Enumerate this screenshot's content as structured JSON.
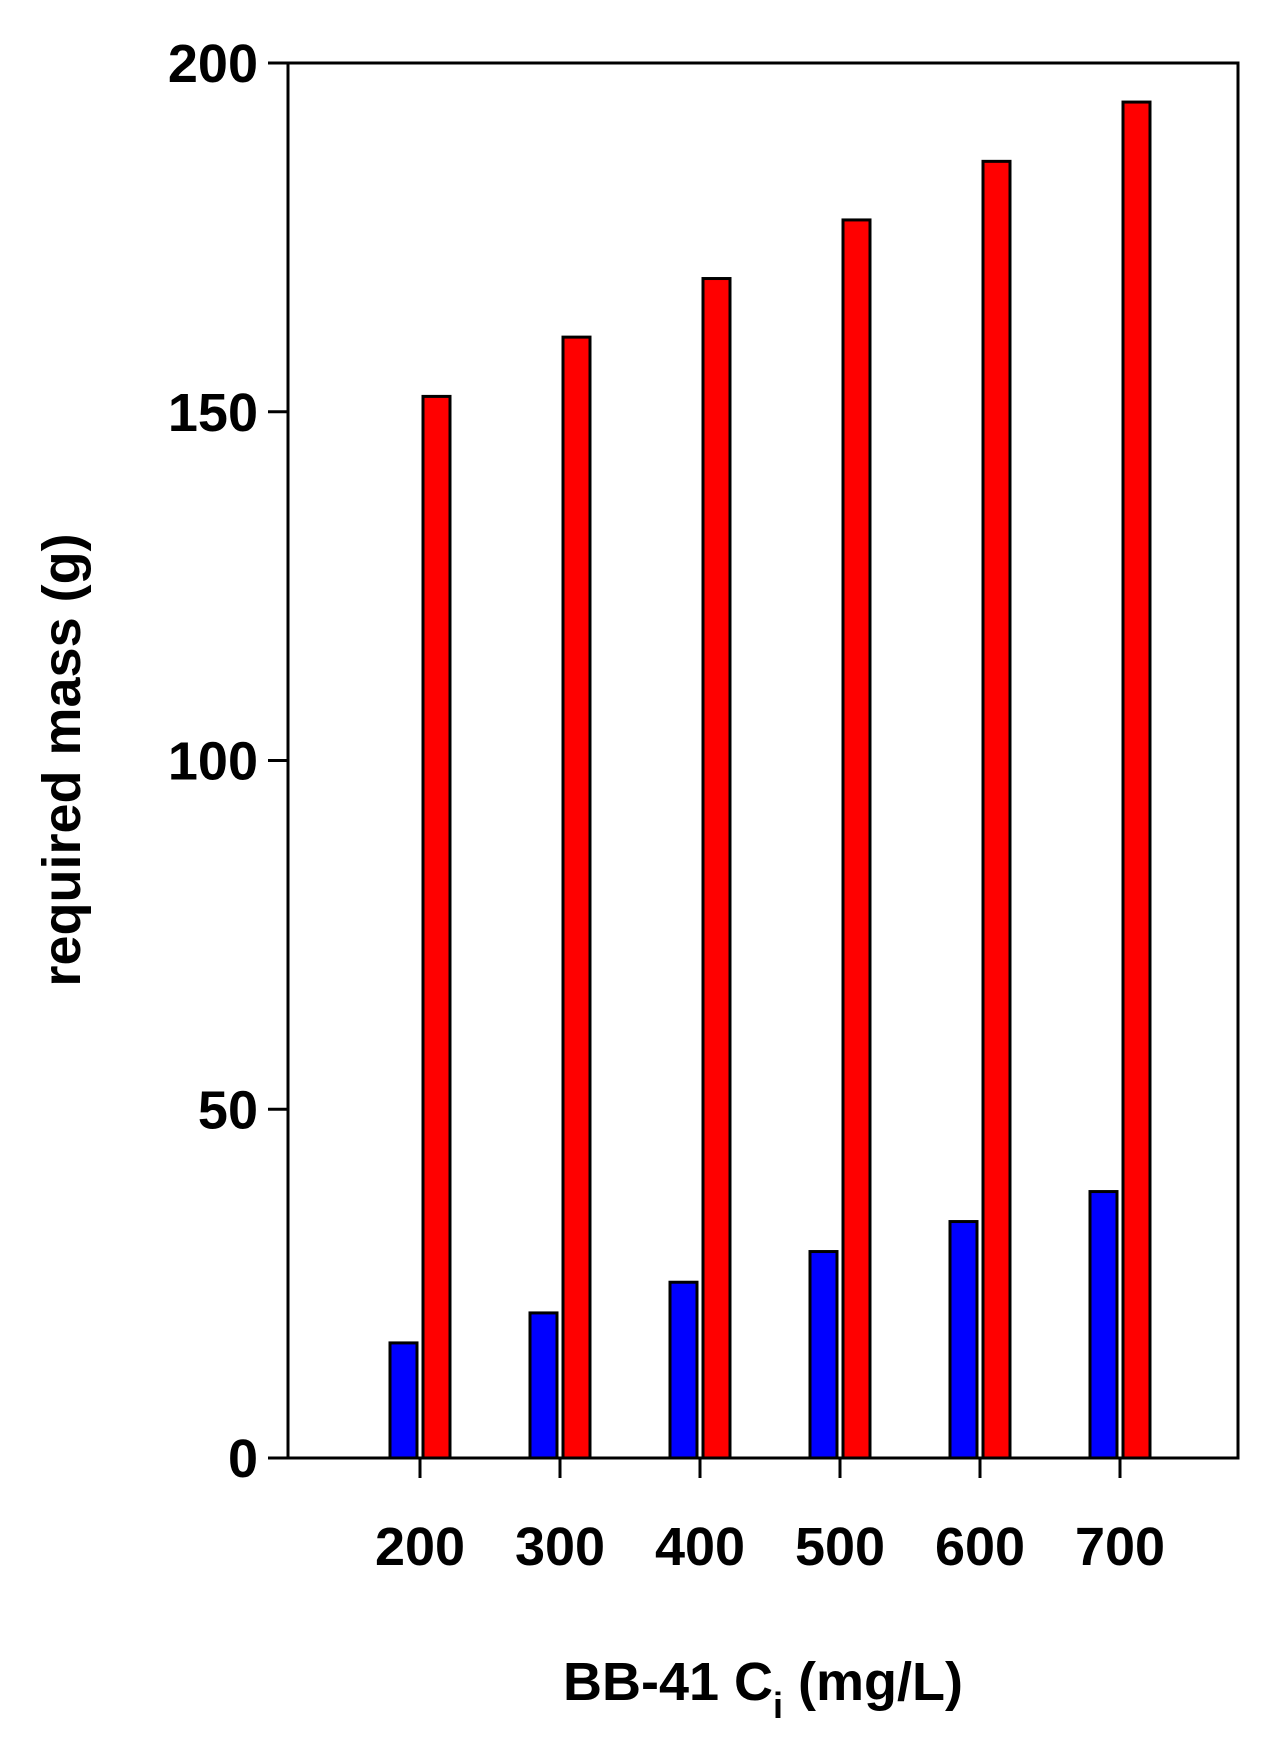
{
  "chart_data": {
    "type": "bar",
    "categories": [
      "200",
      "300",
      "400",
      "500",
      "600",
      "700"
    ],
    "series": [
      {
        "color": "#0000ff",
        "values": [
          16.5,
          20.8,
          25.2,
          29.6,
          33.9,
          38.2
        ]
      },
      {
        "color": "#ff0000",
        "values": [
          152.2,
          160.7,
          169.1,
          177.5,
          185.9,
          194.4
        ]
      }
    ],
    "xlabel": {
      "main": "BB-41 C",
      "subscript": "i",
      "suffix": " (mg/L)"
    },
    "ylabel": "required mass (g)",
    "ylim": [
      0,
      200
    ],
    "yticks": [
      "0",
      "50",
      "100",
      "150",
      "200"
    ],
    "grid": false
  }
}
